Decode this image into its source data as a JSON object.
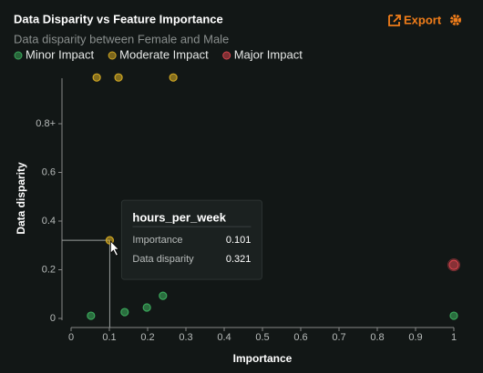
{
  "chart_data": {
    "type": "scatter",
    "title": "Data Disparity vs Feature Importance",
    "subtitle": "Data disparity between Female and Male",
    "export": "Export",
    "xlabel": "Importance",
    "ylabel": "Data disparity",
    "xlim": [
      0,
      1
    ],
    "ylim": [
      0,
      1
    ],
    "xticks": [
      0,
      0.1,
      0.2,
      0.3,
      0.4,
      0.5,
      0.6,
      0.7,
      0.8,
      0.9,
      1
    ],
    "yticks": [
      0,
      0.2,
      0.4,
      0.6,
      {
        "value": 0.8,
        "label": "0.8+"
      }
    ],
    "series": [
      {
        "name": "Minor Impact",
        "color": "#3aa65a",
        "x": [
          0.052,
          0.14,
          0.198,
          0.24,
          1.0
        ],
        "values": [
          0.011,
          0.026,
          0.045,
          0.093,
          0.011
        ]
      },
      {
        "name": "Moderate Impact",
        "color": "#cfa623",
        "x": [
          0.101,
          0.067,
          0.124,
          0.267
        ],
        "values": [
          0.321,
          0.99,
          0.99,
          0.99
        ]
      },
      {
        "name": "Major Impact",
        "color": "#d5434c",
        "x": [
          1.0
        ],
        "values": [
          0.22
        ]
      }
    ],
    "tooltip": {
      "title": "hours_per_week",
      "x_label": "Importance",
      "y_label": "Data disparity"
    }
  }
}
